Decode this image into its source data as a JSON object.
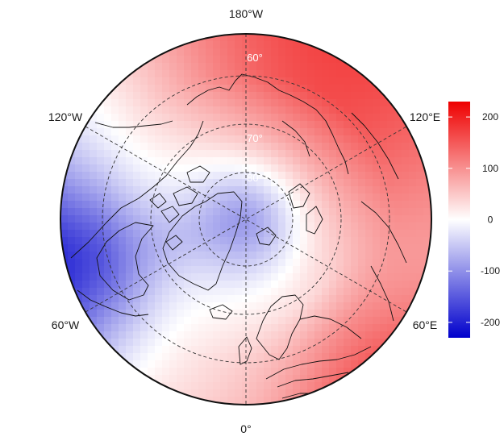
{
  "map": {
    "projection": "north polar stereographic",
    "longitude_labels": {
      "top": "180°W",
      "upper_left": "120°W",
      "upper_right": "120°E",
      "lower_left": "60°W",
      "lower_right": "60°E",
      "bottom": "0°"
    },
    "latitude_labels": [
      "60°",
      "70°",
      "80°"
    ],
    "field_description_regions": [
      {
        "region": "north pacific / bering",
        "level": "high"
      },
      {
        "region": "eurasia / europe",
        "level": "high"
      },
      {
        "region": "arctic basin",
        "level": "low"
      },
      {
        "region": "north atlantic / labrador",
        "level": "low"
      },
      {
        "region": "greenland sea",
        "level": "near zero"
      }
    ]
  },
  "colorbar": {
    "ticks": [
      "200",
      "100",
      "0",
      "-100",
      "-200"
    ],
    "range": [
      -230,
      230
    ],
    "colors": {
      "low": "#0000cc",
      "mid": "#ffffff",
      "high": "#ee0000"
    }
  }
}
